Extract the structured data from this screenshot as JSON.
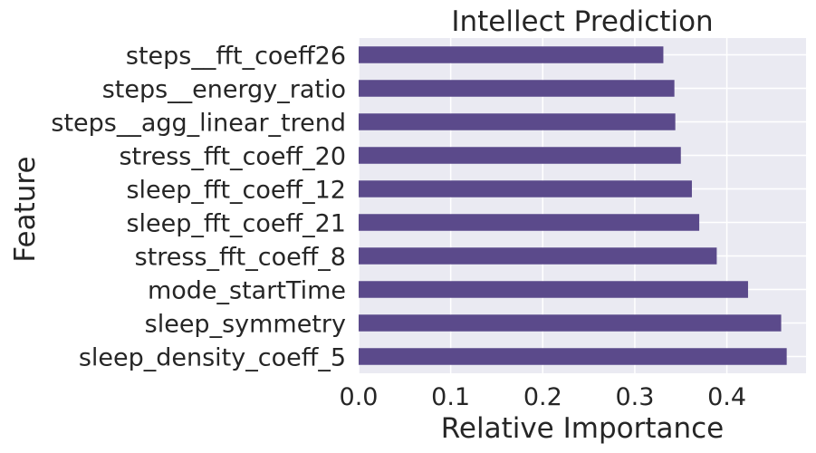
{
  "chart_data": {
    "type": "bar",
    "orientation": "horizontal",
    "title": "Intellect Prediction",
    "xlabel": "Relative Importance",
    "ylabel": "Feature",
    "categories": [
      "steps__fft_coeff26",
      "steps__energy_ratio",
      "steps__agg_linear_trend",
      "stress_fft_coeff_20",
      "sleep_fft_coeff_12",
      "sleep_fft_coeff_21",
      "stress_fft_coeff_8",
      "mode_startTime",
      "sleep_symmetry",
      "sleep_density_coeff_5"
    ],
    "values": [
      0.331,
      0.343,
      0.344,
      0.35,
      0.362,
      0.37,
      0.389,
      0.423,
      0.459,
      0.465
    ],
    "xlim": [
      0.0,
      0.486
    ],
    "xticks": [
      "0.0",
      "0.1",
      "0.2",
      "0.3",
      "0.4"
    ],
    "grid": true,
    "colors": {
      "bar": "#5b4a8b",
      "plot_background": "#eaeaf2",
      "grid": "#ffffff",
      "text": "#262626"
    }
  }
}
